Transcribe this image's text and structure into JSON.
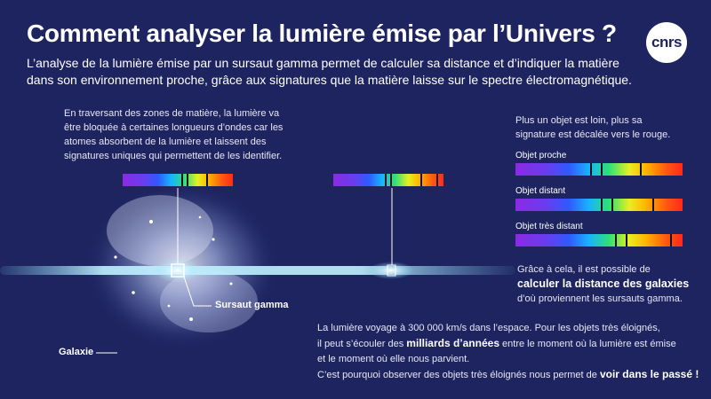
{
  "header": {
    "title": "Comment analyser la lumière émise par l’Univers ?",
    "intro": "L’analyse de la lumière émise par un sursaut gamma permet de calculer sa distance et d’indiquer la matière dans son environnement proche, grâce aux signatures que la matière laisse sur le spectre électromagnétique.",
    "logo": "cnrs"
  },
  "notes": {
    "left": "En traversant des zones de matière, la lumière va être bloquée à certaines longueurs d’ondes car les atomes absorbent de la lumière et laissent des signatures uniques qui permettent de les identifier.",
    "right": "Plus un objet est loin, plus sa signature est décalée vers le rouge."
  },
  "spectra": {
    "near": "Objet proche",
    "far": "Objet distant",
    "very_far": "Objet très distant"
  },
  "distance": {
    "before": "Grâce à cela, il est possible de",
    "bold": "calculer la distance des galaxies",
    "after": "d’où proviennent les sursauts gamma."
  },
  "labels": {
    "burst": "Sursaut gamma",
    "galaxy": "Galaxie"
  },
  "bottom": {
    "line1": "La lumière voyage à 300 000 km/s dans l’espace. Pour les objets très éloignés,",
    "line2_a": "il peut s’écouler des ",
    "line2_bold": "milliards d’années",
    "line2_b": " entre le moment où la lumière est émise",
    "line3": "et le moment où elle nous parvient.",
    "line4_a": "C’est pourquoi observer des objets très éloignés nous permet de ",
    "line4_bold": "voir dans le passé !"
  },
  "colors": {
    "background": "#1d2460",
    "beam": "#8fe0ff"
  }
}
